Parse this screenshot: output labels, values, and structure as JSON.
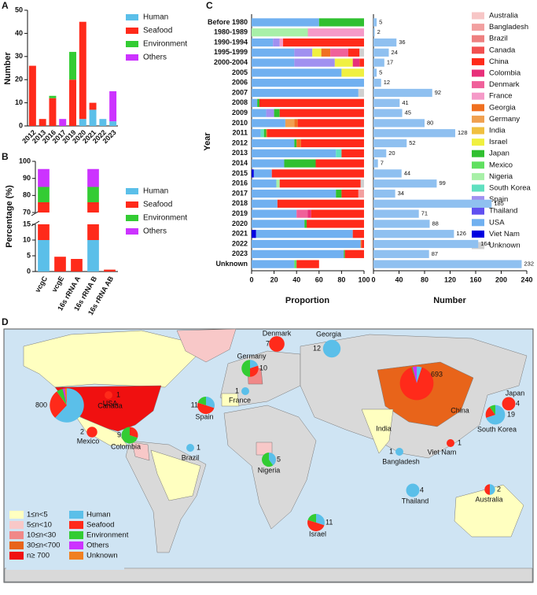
{
  "chart_data": [
    {
      "type": "bar",
      "stacked": true,
      "label": "A",
      "ylabel": "Number",
      "categories": [
        "2012",
        "2013",
        "2016",
        "2017",
        "2019",
        "2020",
        "2021",
        "2022",
        "2023"
      ],
      "series": [
        {
          "name": "Human",
          "color": "#5bbfe9",
          "values": [
            0,
            0,
            0,
            0,
            0,
            3,
            7,
            3,
            2
          ]
        },
        {
          "name": "Seafood",
          "color": "#ff2a1a",
          "values": [
            26,
            3,
            12,
            0,
            20,
            42,
            3,
            0,
            0
          ]
        },
        {
          "name": "Environment",
          "color": "#33cc33",
          "values": [
            0,
            0,
            1,
            0,
            12,
            0,
            0,
            0,
            0
          ]
        },
        {
          "name": "Others",
          "color": "#cc33ff",
          "values": [
            0,
            0,
            0,
            3,
            0,
            0,
            0,
            0,
            13
          ]
        }
      ],
      "ylim": [
        0,
        50
      ],
      "yticks": [
        0,
        10,
        20,
        30,
        40,
        50
      ]
    },
    {
      "type": "bar",
      "stacked": true,
      "label": "B",
      "ylabel": "Percentage (%)",
      "categories": [
        "vcgC",
        "vcgE",
        "16s rRNA A",
        "16s rRNA B",
        "16s rRNA AB"
      ],
      "series": [
        {
          "name": "Human",
          "color": "#5bbfe9",
          "values": [
            10,
            0,
            0,
            10,
            0
          ]
        },
        {
          "name": "Seafood",
          "color": "#ff2a1a",
          "values": [
            66,
            4.7,
            4,
            66,
            0.6
          ]
        },
        {
          "name": "Environment",
          "color": "#33cc33",
          "values": [
            9,
            0,
            0,
            9,
            0
          ]
        },
        {
          "name": "Others",
          "color": "#cc33ff",
          "values": [
            10.5,
            0,
            0,
            10.5,
            0
          ]
        }
      ],
      "ylim": [
        0,
        100
      ],
      "axis_break": [
        15,
        70
      ],
      "yticks": [
        0,
        5,
        10,
        15,
        70,
        80,
        90,
        100
      ]
    },
    {
      "type": "hbar",
      "stacked": true,
      "label": "C",
      "ylabel": "Year",
      "xlabel": "Proportion",
      "categories": [
        "Before 1980",
        "1980-1989",
        "1990-1994",
        "1995-1999",
        "2000-2004",
        "2005",
        "2006",
        "2007",
        "2008",
        "2009",
        "2010",
        "2011",
        "2012",
        "2013",
        "2014",
        "2015",
        "2016",
        "2017",
        "2018",
        "2019",
        "2020",
        "2021",
        "2022",
        "2023",
        "Unknown"
      ],
      "series": [
        {
          "name": "Australia",
          "color": "#f7c6c6",
          "values": [
            0,
            0,
            0,
            0,
            0,
            0,
            0,
            0,
            0,
            0,
            0,
            0,
            0,
            0,
            0,
            0,
            0,
            0,
            0,
            0,
            0,
            0,
            0,
            0,
            0
          ]
        },
        {
          "name": "Bangladesh",
          "color": "#f2a0a0",
          "values": [
            0,
            0,
            0,
            0,
            0,
            0,
            0,
            0,
            0,
            0,
            0,
            0,
            0,
            0,
            0,
            0,
            0,
            5,
            0,
            0,
            0,
            0,
            0,
            0,
            0
          ]
        },
        {
          "name": "Brazil",
          "color": "#ee8080",
          "values": [
            0,
            0,
            0,
            0,
            0,
            0,
            0,
            0,
            0,
            0,
            0,
            0,
            0,
            0,
            0,
            0,
            0,
            0,
            0,
            0,
            0,
            0,
            0,
            0,
            0
          ]
        },
        {
          "name": "Canada",
          "color": "#f25050",
          "values": [
            0,
            0,
            0,
            0,
            0,
            0,
            0,
            0,
            0,
            0,
            0,
            0,
            0,
            0,
            0,
            0,
            0,
            0,
            0,
            0,
            0,
            0,
            0,
            0,
            0
          ]
        },
        {
          "name": "China",
          "color": "#ff2a1a",
          "values": [
            0,
            0,
            72,
            10,
            4,
            0,
            0,
            0,
            93,
            75,
            59,
            86,
            56,
            20,
            43,
            82,
            72,
            15,
            77,
            47,
            51,
            10,
            2,
            17,
            20
          ]
        },
        {
          "name": "Colombia",
          "color": "#e8307a",
          "values": [
            0,
            0,
            0,
            0,
            6,
            0,
            0,
            0,
            0,
            0,
            0,
            0,
            0,
            0,
            0,
            0,
            0,
            0,
            0,
            3,
            0,
            0,
            0,
            0,
            0
          ]
        },
        {
          "name": "Denmark",
          "color": "#f0609a",
          "values": [
            0,
            0,
            0,
            16,
            0,
            0,
            0,
            0,
            0,
            0,
            0,
            0,
            0,
            0,
            0,
            0,
            0,
            0,
            0,
            10,
            0,
            0,
            0,
            0,
            0
          ]
        },
        {
          "name": "France",
          "color": "#f59ac8",
          "values": [
            0,
            50,
            3,
            0,
            0,
            0,
            0,
            0,
            0,
            0,
            0,
            0,
            0,
            0,
            0,
            0,
            0,
            0,
            0,
            0,
            0,
            0,
            0,
            0,
            0
          ]
        },
        {
          "name": "Georgia",
          "color": "#f07020",
          "values": [
            0,
            0,
            0,
            8,
            0,
            0,
            0,
            0,
            0,
            0,
            3,
            1,
            4,
            0,
            0,
            0,
            0,
            0,
            0,
            0,
            0,
            0,
            1,
            0,
            0
          ]
        },
        {
          "name": "Germany",
          "color": "#f0a050",
          "values": [
            0,
            0,
            0,
            0,
            0,
            0,
            0,
            0,
            0,
            0,
            8,
            0,
            0,
            0,
            0,
            0,
            0,
            0,
            0,
            0,
            0,
            0,
            0,
            0,
            0
          ]
        },
        {
          "name": "India",
          "color": "#f0c040",
          "values": [
            0,
            0,
            0,
            0,
            0,
            0,
            0,
            0,
            0,
            0,
            0,
            0,
            0,
            0,
            0,
            0,
            0,
            0,
            0,
            0,
            0,
            0,
            0,
            0,
            0
          ]
        },
        {
          "name": "Israel",
          "color": "#f0f040",
          "values": [
            0,
            0,
            0,
            8,
            16,
            20,
            0,
            0,
            0,
            0,
            0,
            0,
            0,
            0,
            0,
            0,
            0,
            0,
            0,
            0,
            0,
            0,
            0,
            0,
            0
          ]
        },
        {
          "name": "Japan",
          "color": "#30c030",
          "values": [
            40,
            0,
            0,
            0,
            0,
            0,
            0,
            0,
            2,
            5,
            0,
            2,
            2,
            0,
            28,
            0,
            0,
            5,
            0,
            0,
            2,
            0,
            0,
            1,
            0
          ]
        },
        {
          "name": "Mexico",
          "color": "#60e060",
          "values": [
            0,
            0,
            0,
            0,
            0,
            0,
            0,
            0,
            0,
            0,
            0,
            0,
            0,
            0,
            0,
            0,
            0,
            0,
            0,
            0,
            0,
            0,
            0,
            0,
            2
          ]
        },
        {
          "name": "Nigeria",
          "color": "#a8f0a8",
          "values": [
            0,
            50,
            0,
            0,
            0,
            0,
            0,
            0,
            0,
            0,
            0,
            0,
            0,
            0,
            0,
            0,
            3,
            0,
            0,
            0,
            0,
            0,
            0,
            0,
            0
          ]
        },
        {
          "name": "South Korea",
          "color": "#60e0c0",
          "values": [
            0,
            0,
            0,
            0,
            0,
            0,
            0,
            0,
            0,
            0,
            0,
            3,
            0,
            5,
            0,
            0,
            0,
            0,
            0,
            0,
            0,
            0,
            0,
            0,
            0
          ]
        },
        {
          "name": "Spain",
          "color": "#a090f0",
          "values": [
            0,
            0,
            6,
            16,
            36,
            0,
            0,
            0,
            0,
            7,
            0,
            0,
            0,
            0,
            0,
            0,
            0,
            0,
            0,
            0,
            0,
            0,
            0,
            0,
            0
          ]
        },
        {
          "name": "Thailand",
          "color": "#6050f0",
          "values": [
            0,
            0,
            0,
            0,
            0,
            0,
            0,
            0,
            0,
            0,
            0,
            0,
            0,
            0,
            0,
            0,
            0,
            0,
            0,
            0,
            0,
            0,
            0,
            0,
            0
          ]
        },
        {
          "name": "USA",
          "color": "#70b0f0",
          "values": [
            60,
            0,
            19,
            38,
            38,
            80,
            100,
            95,
            5,
            13,
            30,
            8,
            38,
            75,
            29,
            16,
            22,
            75,
            23,
            40,
            47,
            86,
            97,
            82,
            38
          ]
        },
        {
          "name": "Viet Nam",
          "color": "#0000e0",
          "values": [
            0,
            0,
            0,
            0,
            0,
            0,
            0,
            0,
            0,
            0,
            0,
            0,
            0,
            0,
            0,
            2,
            0,
            0,
            0,
            0,
            0,
            4,
            0,
            0,
            0
          ]
        },
        {
          "name": "Unknown",
          "color": "#d0d0d0",
          "values": [
            0,
            0,
            0,
            4,
            0,
            0,
            0,
            5,
            0,
            0,
            0,
            0,
            0,
            0,
            0,
            0,
            3,
            0,
            0,
            0,
            0,
            0,
            0,
            0,
            0
          ]
        }
      ],
      "xlim": [
        0,
        100
      ],
      "xticks": [
        0,
        20,
        40,
        60,
        80,
        100
      ]
    },
    {
      "type": "hbar",
      "xlabel": "Number",
      "color": "#8fc0f0",
      "values": [
        5,
        2,
        36,
        24,
        17,
        5,
        12,
        92,
        41,
        45,
        80,
        128,
        52,
        20,
        7,
        44,
        99,
        34,
        185,
        71,
        88,
        126,
        164,
        87,
        232
      ],
      "xlim": [
        0,
        240
      ],
      "xticks": [
        0,
        40,
        80,
        120,
        160,
        200,
        240
      ]
    }
  ],
  "map": {
    "label": "D",
    "bins": [
      {
        "label": "1≤n<5",
        "color": "#ffffc0"
      },
      {
        "label": "5≤n<10",
        "color": "#f8c8c8"
      },
      {
        "label": "10≤n<30",
        "color": "#f08888"
      },
      {
        "label": "30≤n<700",
        "color": "#e8641a"
      },
      {
        "label": "n≥ 700",
        "color": "#f01010"
      }
    ],
    "categories": [
      {
        "name": "Human",
        "color": "#5bbfe9"
      },
      {
        "name": "Seafood",
        "color": "#ff2a1a"
      },
      {
        "name": "Environment",
        "color": "#33cc33"
      },
      {
        "name": "Others",
        "color": "#cc33ff"
      },
      {
        "name": "Unknown",
        "color": "#f08020"
      }
    ],
    "pies": [
      {
        "name": "Canada",
        "count": 1,
        "values": [
          0,
          100,
          0,
          0,
          0
        ]
      },
      {
        "name": "USA",
        "count": 800,
        "values": [
          62,
          28,
          6,
          2,
          2
        ]
      },
      {
        "name": "Mexico",
        "count": 2,
        "values": [
          0,
          100,
          0,
          0,
          0
        ]
      },
      {
        "name": "Colombia",
        "count": 9,
        "values": [
          0,
          30,
          70,
          0,
          0
        ]
      },
      {
        "name": "Brazil",
        "count": 1,
        "values": [
          100,
          0,
          0,
          0,
          0
        ]
      },
      {
        "name": "France",
        "count": 1,
        "values": [
          100,
          0,
          0,
          0,
          0
        ]
      },
      {
        "name": "Germany",
        "count": 10,
        "values": [
          20,
          30,
          50,
          0,
          0
        ]
      },
      {
        "name": "Denmark",
        "count": 7,
        "values": [
          0,
          100,
          0,
          0,
          0
        ]
      },
      {
        "name": "Georgia",
        "count": 12,
        "values": [
          100,
          0,
          0,
          0,
          0
        ]
      },
      {
        "name": "Spain",
        "count": 11,
        "values": [
          30,
          50,
          20,
          0,
          0
        ]
      },
      {
        "name": "Nigeria",
        "count": 5,
        "values": [
          40,
          0,
          60,
          0,
          0
        ]
      },
      {
        "name": "Israel",
        "count": 11,
        "values": [
          30,
          50,
          20,
          0,
          0
        ]
      },
      {
        "name": "China",
        "count": 693,
        "values": [
          5,
          90,
          1,
          4,
          0
        ]
      },
      {
        "name": "Bangladesh",
        "count": 1,
        "values": [
          100,
          0,
          0,
          0,
          0
        ]
      },
      {
        "name": "Viet Nam",
        "count": 1,
        "values": [
          0,
          100,
          0,
          0,
          0
        ]
      },
      {
        "name": "Thailand",
        "count": 4,
        "values": [
          100,
          0,
          0,
          0,
          0
        ]
      },
      {
        "name": "Australia",
        "count": 2,
        "values": [
          50,
          50,
          0,
          0,
          0
        ]
      },
      {
        "name": "Japan",
        "count": 4,
        "values": [
          0,
          100,
          0,
          0,
          0
        ]
      },
      {
        "name": "South Korea",
        "count": 19,
        "values": [
          70,
          20,
          10,
          0,
          0
        ]
      },
      {
        "name": "India"
      }
    ]
  }
}
